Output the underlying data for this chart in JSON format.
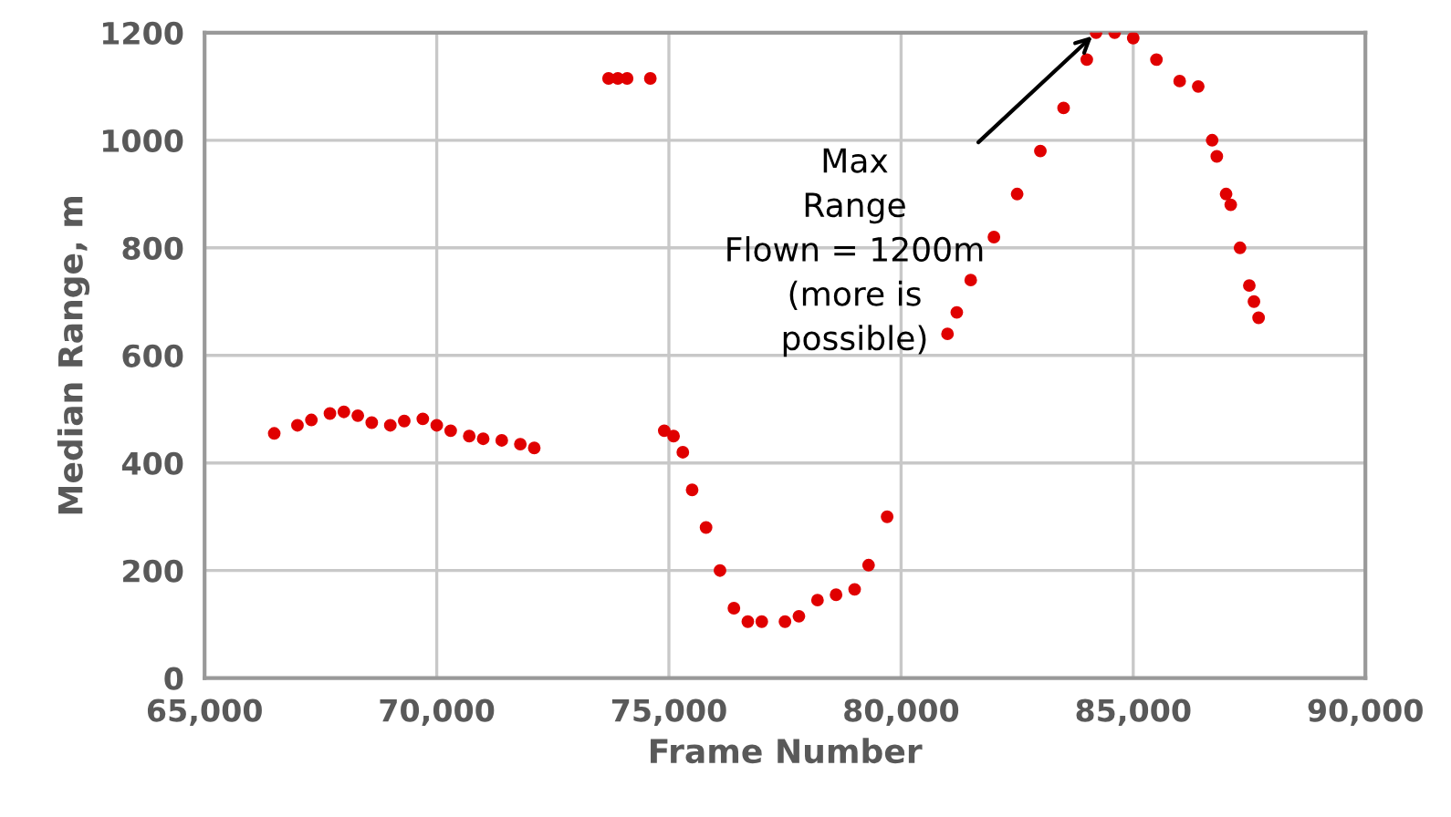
{
  "chart_data": {
    "type": "scatter",
    "xlabel": "Frame Number",
    "ylabel": "Median Range, m",
    "x": [
      66500,
      67000,
      67300,
      67700,
      68000,
      68300,
      68600,
      69000,
      69300,
      69700,
      70000,
      70300,
      70700,
      71000,
      71400,
      71800,
      72100,
      73700,
      73900,
      74100,
      74600,
      74900,
      75100,
      75300,
      75500,
      75800,
      76100,
      76400,
      76700,
      77000,
      77500,
      77800,
      78200,
      78600,
      79000,
      79300,
      79700,
      81000,
      81200,
      81500,
      82000,
      82500,
      83000,
      83500,
      84000,
      84200,
      84600,
      85000,
      85500,
      86000,
      86400,
      86700,
      86800,
      87000,
      87100,
      87300,
      87500,
      87600,
      87700
    ],
    "series": [
      {
        "color": "#e00000",
        "values": [
          455,
          470,
          480,
          492,
          495,
          488,
          475,
          470,
          478,
          482,
          470,
          460,
          450,
          445,
          442,
          435,
          428,
          1115,
          1115,
          1115,
          1115,
          460,
          450,
          420,
          350,
          280,
          200,
          130,
          105,
          105,
          105,
          115,
          145,
          155,
          165,
          210,
          300,
          640,
          680,
          740,
          820,
          900,
          980,
          1060,
          1150,
          1200,
          1200,
          1190,
          1150,
          1110,
          1100,
          1000,
          970,
          900,
          880,
          800,
          730,
          700,
          670
        ]
      }
    ],
    "xlim": [
      65000,
      90000
    ],
    "xticks": [
      {
        "value": 65000,
        "label": "65,000"
      },
      {
        "value": 70000,
        "label": "70,000"
      },
      {
        "value": 75000,
        "label": "75,000"
      },
      {
        "value": 80000,
        "label": "80,000"
      },
      {
        "value": 85000,
        "label": "85,000"
      },
      {
        "value": 90000,
        "label": "90,000"
      }
    ],
    "ylim": [
      0,
      1200
    ],
    "yticks": [
      0,
      200,
      400,
      600,
      800,
      1000,
      1200
    ],
    "grid": true,
    "marker": "circle",
    "annotations": [
      {
        "text": "Max\nRange\nFlown = 1200m\n(more is\npossible)",
        "x": 84200,
        "y": 1200
      }
    ]
  }
}
